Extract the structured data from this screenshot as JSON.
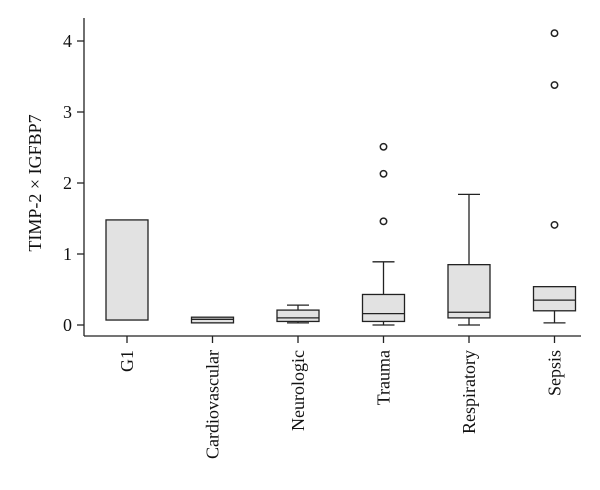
{
  "chart_data": {
    "type": "boxplot",
    "title": "",
    "xlabel": "",
    "ylabel": "TIMP-2 × IGFBP7",
    "ylim": [
      -0.2,
      4.3
    ],
    "yticks": [
      0,
      1,
      2,
      3,
      4
    ],
    "ytick_labels": [
      "0",
      "1",
      "2",
      "3",
      "4"
    ],
    "grid": false,
    "legend": "none",
    "colors": {
      "box_fill": "#e2e2e2",
      "stroke": "#222222"
    },
    "categories": [
      "G1",
      "Cardiovascular",
      "Neurologic",
      "Trauma",
      "Respiratory",
      "Sepsis"
    ],
    "boxes": [
      {
        "name": "G1",
        "q1": 0.07,
        "median": null,
        "q3": 1.48,
        "whisker_low": null,
        "whisker_high": null,
        "outliers": []
      },
      {
        "name": "Cardiovascular",
        "q1": 0.03,
        "median": 0.08,
        "q3": 0.11,
        "whisker_low": null,
        "whisker_high": null,
        "outliers": []
      },
      {
        "name": "Neurologic",
        "q1": 0.05,
        "median": 0.1,
        "q3": 0.21,
        "whisker_low": 0.03,
        "whisker_high": 0.28,
        "outliers": []
      },
      {
        "name": "Trauma",
        "q1": 0.05,
        "median": 0.16,
        "q3": 0.43,
        "whisker_low": 0.0,
        "whisker_high": 0.89,
        "outliers": [
          1.46,
          2.13,
          2.51
        ]
      },
      {
        "name": "Respiratory",
        "q1": 0.1,
        "median": 0.18,
        "q3": 0.85,
        "whisker_low": 0.0,
        "whisker_high": 1.84,
        "outliers": []
      },
      {
        "name": "Sepsis",
        "q1": 0.2,
        "median": 0.35,
        "q3": 0.54,
        "whisker_low": 0.03,
        "whisker_high": null,
        "outliers": [
          1.41,
          3.38,
          4.11
        ]
      }
    ]
  }
}
